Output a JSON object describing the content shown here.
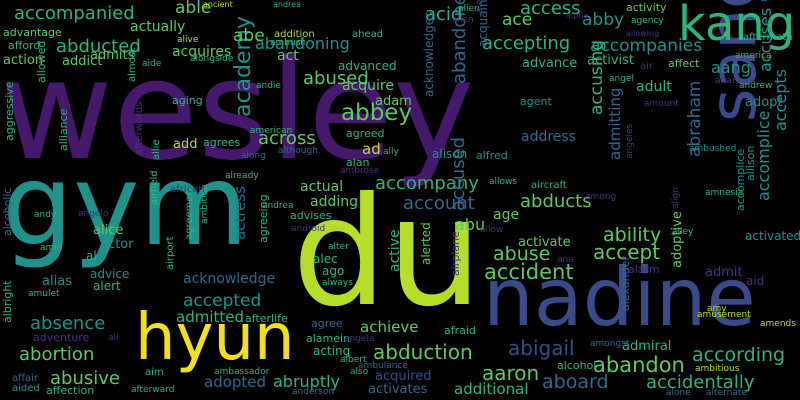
{
  "palette": {
    "purple": "#46186c",
    "violet": "#48307c",
    "indigo": "#3b4b8a",
    "blue": "#31688e",
    "teal": "#21918c",
    "green": "#2fb47c",
    "lime": "#5ec962",
    "yellowgreen": "#b5de2b",
    "yellow": "#f0e020"
  },
  "words": [
    {
      "text": "wesley",
      "color": "purple"
    },
    {
      "text": "gym",
      "color": "teal"
    },
    {
      "text": "du",
      "color": "yellowgreen"
    },
    {
      "text": "nadine",
      "color": "indigo"
    },
    {
      "text": "sang",
      "color": "indigo"
    },
    {
      "text": "kang",
      "color": "green"
    },
    {
      "text": "hyun",
      "color": "yellow"
    },
    {
      "text": "academy",
      "color": "teal"
    },
    {
      "text": "abbey",
      "color": "lime"
    },
    {
      "text": "abduction",
      "color": "lime"
    },
    {
      "text": "abigail",
      "color": "indigo"
    },
    {
      "text": "abandon",
      "color": "lime"
    },
    {
      "text": "aaron",
      "color": "lime"
    },
    {
      "text": "aboard",
      "color": "blue"
    },
    {
      "text": "accidentally",
      "color": "green"
    },
    {
      "text": "according",
      "color": "green"
    },
    {
      "text": "abortion",
      "color": "lime"
    },
    {
      "text": "abusive",
      "color": "lime"
    },
    {
      "text": "absence",
      "color": "teal"
    },
    {
      "text": "accepted",
      "color": "teal"
    },
    {
      "text": "accident",
      "color": "lime"
    },
    {
      "text": "abuse",
      "color": "lime"
    },
    {
      "text": "ability",
      "color": "lime"
    },
    {
      "text": "accept",
      "color": "lime"
    },
    {
      "text": "abraham",
      "color": "blue"
    },
    {
      "text": "accompany",
      "color": "green"
    },
    {
      "text": "account",
      "color": "blue"
    },
    {
      "text": "abducts",
      "color": "lime"
    },
    {
      "text": "abandoned",
      "color": "blue"
    },
    {
      "text": "accused",
      "color": "blue"
    },
    {
      "text": "abused",
      "color": "lime"
    },
    {
      "text": "accepting",
      "color": "green"
    },
    {
      "text": "abducted",
      "color": "green"
    },
    {
      "text": "accompanied",
      "color": "green"
    },
    {
      "text": "access",
      "color": "green"
    },
    {
      "text": "acid",
      "color": "green"
    },
    {
      "text": "ace",
      "color": "lime"
    },
    {
      "text": "abby",
      "color": "teal"
    },
    {
      "text": "accompanies",
      "color": "teal"
    },
    {
      "text": "accuses",
      "color": "teal"
    },
    {
      "text": "accepts",
      "color": "teal"
    },
    {
      "text": "accomplice",
      "color": "teal"
    },
    {
      "text": "accusing",
      "color": "green"
    },
    {
      "text": "admitting",
      "color": "blue"
    },
    {
      "text": "across",
      "color": "lime"
    },
    {
      "text": "abandoning",
      "color": "teal"
    },
    {
      "text": "abe",
      "color": "lime"
    },
    {
      "text": "able",
      "color": "lime"
    },
    {
      "text": "actually",
      "color": "lime"
    },
    {
      "text": "acquires",
      "color": "lime"
    },
    {
      "text": "admits",
      "color": "lime"
    },
    {
      "text": "addict",
      "color": "lime"
    },
    {
      "text": "action",
      "color": "lime"
    },
    {
      "text": "act",
      "color": "lime"
    },
    {
      "text": "acquire",
      "color": "lime"
    },
    {
      "text": "achieve",
      "color": "lime"
    },
    {
      "text": "adopted",
      "color": "blue"
    },
    {
      "text": "abruptly",
      "color": "green"
    },
    {
      "text": "admitted",
      "color": "green"
    },
    {
      "text": "acknowledge",
      "color": "blue"
    },
    {
      "text": "actress",
      "color": "blue"
    },
    {
      "text": "active",
      "color": "green"
    },
    {
      "text": "alerted",
      "color": "lime"
    },
    {
      "text": "activates",
      "color": "blue"
    },
    {
      "text": "additional",
      "color": "green"
    },
    {
      "text": "acquired",
      "color": "indigo"
    },
    {
      "text": "admiral",
      "color": "green"
    },
    {
      "text": "adoptive",
      "color": "lime"
    },
    {
      "text": "alison",
      "color": "teal"
    },
    {
      "text": "activist",
      "color": "green"
    },
    {
      "text": "advance",
      "color": "green"
    },
    {
      "text": "adult",
      "color": "green"
    },
    {
      "text": "adopt",
      "color": "teal"
    },
    {
      "text": "address",
      "color": "blue"
    },
    {
      "text": "activate",
      "color": "lime"
    },
    {
      "text": "abu",
      "color": "lime"
    },
    {
      "text": "age",
      "color": "lime"
    },
    {
      "text": "actual",
      "color": "lime"
    },
    {
      "text": "adding",
      "color": "lime"
    },
    {
      "text": "adam",
      "color": "lime"
    },
    {
      "text": "add",
      "color": "yellowgreen"
    },
    {
      "text": "alice",
      "color": "lime"
    },
    {
      "text": "actor",
      "color": "teal"
    },
    {
      "text": "alias",
      "color": "teal"
    },
    {
      "text": "alert",
      "color": "green"
    },
    {
      "text": "advice",
      "color": "teal"
    },
    {
      "text": "al",
      "color": "green"
    },
    {
      "text": "advantage",
      "color": "lime"
    },
    {
      "text": "afford",
      "color": "green"
    },
    {
      "text": "aang",
      "color": "teal"
    },
    {
      "text": "activated",
      "color": "teal"
    },
    {
      "text": "alien",
      "color": "green"
    },
    {
      "text": "alfred",
      "color": "teal"
    },
    {
      "text": "ad",
      "color": "yellowgreen"
    },
    {
      "text": "agent",
      "color": "teal"
    },
    {
      "text": "aircraft",
      "color": "green"
    },
    {
      "text": "advises",
      "color": "green"
    },
    {
      "text": "afterlife",
      "color": "green"
    },
    {
      "text": "afraid",
      "color": "green"
    },
    {
      "text": "acting",
      "color": "green"
    },
    {
      "text": "alamein",
      "color": "green"
    },
    {
      "text": "agree",
      "color": "blue"
    },
    {
      "text": "adventure",
      "color": "violet"
    },
    {
      "text": "affection",
      "color": "green"
    },
    {
      "text": "alcohol",
      "color": "green"
    },
    {
      "text": "aim",
      "color": "green"
    },
    {
      "text": "affair",
      "color": "blue"
    },
    {
      "text": "aided",
      "color": "teal"
    },
    {
      "text": "afterward",
      "color": "green"
    },
    {
      "text": "anderson",
      "color": "blue"
    },
    {
      "text": "alone",
      "color": "blue"
    },
    {
      "text": "alternate",
      "color": "blue"
    },
    {
      "text": "amends",
      "color": "yellowgreen"
    },
    {
      "text": "amy",
      "color": "yellowgreen"
    },
    {
      "text": "amusement",
      "color": "yellowgreen"
    },
    {
      "text": "admit",
      "color": "violet"
    },
    {
      "text": "aid",
      "color": "violet"
    },
    {
      "text": "alarm",
      "color": "violet"
    },
    {
      "text": "ambitious",
      "color": "yellowgreen"
    },
    {
      "text": "amongst",
      "color": "blue"
    },
    {
      "text": "ambassador",
      "color": "green"
    },
    {
      "text": "ambulance",
      "color": "blue"
    },
    {
      "text": "albright",
      "color": "green"
    },
    {
      "text": "alcoholic",
      "color": "blue"
    },
    {
      "text": "aggressive",
      "color": "green"
    },
    {
      "text": "alliance",
      "color": "green"
    },
    {
      "text": "allowed",
      "color": "green"
    },
    {
      "text": "almost",
      "color": "green"
    },
    {
      "text": "afterwards",
      "color": "violet"
    },
    {
      "text": "airfield",
      "color": "green"
    },
    {
      "text": "allie",
      "color": "green"
    },
    {
      "text": "agreement",
      "color": "green"
    },
    {
      "text": "ambition",
      "color": "green"
    },
    {
      "text": "airport",
      "color": "green"
    },
    {
      "text": "agreeing",
      "color": "green"
    },
    {
      "text": "acquaintance",
      "color": "blue"
    },
    {
      "text": "acknowledges",
      "color": "blue"
    },
    {
      "text": "airplane",
      "color": "violet"
    },
    {
      "text": "alexander",
      "color": "blue"
    },
    {
      "text": "allison",
      "color": "teal"
    },
    {
      "text": "accomplice",
      "color": "teal"
    },
    {
      "text": "american",
      "color": "green"
    },
    {
      "text": "agreed",
      "color": "green"
    },
    {
      "text": "agrees",
      "color": "green"
    },
    {
      "text": "ally",
      "color": "green"
    },
    {
      "text": "alan",
      "color": "green"
    },
    {
      "text": "along",
      "color": "blue"
    },
    {
      "text": "although",
      "color": "blue"
    },
    {
      "text": "aging",
      "color": "green"
    },
    {
      "text": "african",
      "color": "violet"
    },
    {
      "text": "already",
      "color": "green"
    },
    {
      "text": "ambrose",
      "color": "violet"
    },
    {
      "text": "allows",
      "color": "green"
    },
    {
      "text": "among",
      "color": "violet"
    },
    {
      "text": "align",
      "color": "violet"
    },
    {
      "text": "alley",
      "color": "green"
    },
    {
      "text": "ambushed",
      "color": "teal"
    },
    {
      "text": "amnesia",
      "color": "green"
    },
    {
      "text": "andy",
      "color": "green"
    },
    {
      "text": "angelo",
      "color": "violet"
    },
    {
      "text": "andrea",
      "color": "green"
    },
    {
      "text": "amid",
      "color": "green"
    },
    {
      "text": "amulet",
      "color": "green"
    },
    {
      "text": "android",
      "color": "violet"
    },
    {
      "text": "alter",
      "color": "green"
    },
    {
      "text": "alec",
      "color": "green"
    },
    {
      "text": "ago",
      "color": "green"
    },
    {
      "text": "always",
      "color": "green"
    },
    {
      "text": "albert",
      "color": "green"
    },
    {
      "text": "angela",
      "color": "violet"
    },
    {
      "text": "allow",
      "color": "violet"
    },
    {
      "text": "ana",
      "color": "violet"
    },
    {
      "text": "ali",
      "color": "violet"
    },
    {
      "text": "also",
      "color": "green"
    },
    {
      "text": "ancient",
      "color": "yellowgreen"
    },
    {
      "text": "andrea",
      "color": "green"
    },
    {
      "text": "allen",
      "color": "violet"
    },
    {
      "text": "alex",
      "color": "violet"
    },
    {
      "text": "alpha",
      "color": "violet"
    },
    {
      "text": "allowing",
      "color": "violet"
    },
    {
      "text": "agency",
      "color": "green"
    },
    {
      "text": "aftermath",
      "color": "green"
    },
    {
      "text": "addition",
      "color": "yellowgreen"
    },
    {
      "text": "alive",
      "color": "yellowgreen"
    },
    {
      "text": "ahead",
      "color": "green"
    },
    {
      "text": "ambush",
      "color": "green"
    },
    {
      "text": "alongside",
      "color": "green"
    },
    {
      "text": "aide",
      "color": "green"
    },
    {
      "text": "advanced",
      "color": "green"
    },
    {
      "text": "affect",
      "color": "lime"
    },
    {
      "text": "air",
      "color": "violet"
    },
    {
      "text": "america",
      "color": "green"
    },
    {
      "text": "amount",
      "color": "violet"
    },
    {
      "text": "angel",
      "color": "green"
    },
    {
      "text": "altar",
      "color": "violet"
    },
    {
      "text": "andrew",
      "color": "green"
    },
    {
      "text": "angeles",
      "color": "violet"
    },
    {
      "text": "andie",
      "color": "green"
    },
    {
      "text": "activity",
      "color": "lime"
    }
  ]
}
